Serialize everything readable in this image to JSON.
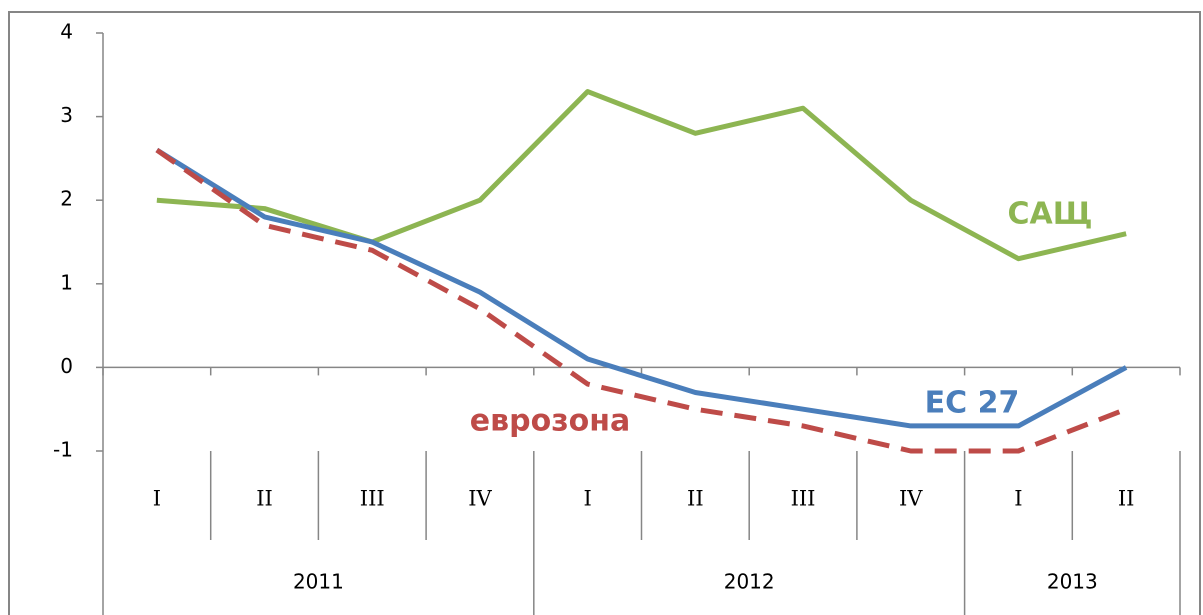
{
  "chart_data": {
    "type": "line",
    "category_groups": [
      {
        "label": "2011",
        "categories": [
          "I",
          "II",
          "III",
          "IV"
        ]
      },
      {
        "label": "2012",
        "categories": [
          "I",
          "II",
          "III",
          "IV"
        ]
      },
      {
        "label": "2013",
        "categories": [
          "I",
          "II"
        ]
      }
    ],
    "series": [
      {
        "name": "САЩ",
        "color": "#8db552",
        "dashed": false,
        "values": [
          2.0,
          1.9,
          1.5,
          2.0,
          3.3,
          2.8,
          3.1,
          2.0,
          1.3,
          1.6
        ]
      },
      {
        "name": "ЕС 27",
        "color": "#4a7ebb",
        "dashed": false,
        "values": [
          2.6,
          1.8,
          1.5,
          0.9,
          0.1,
          -0.3,
          -0.5,
          -0.7,
          -0.7,
          0.0
        ]
      },
      {
        "name": "еврозона",
        "color": "#be4b48",
        "dashed": true,
        "values": [
          2.6,
          1.7,
          1.4,
          0.7,
          -0.2,
          -0.5,
          -0.7,
          -1.0,
          -1.0,
          -0.5
        ]
      }
    ],
    "ylim": [
      -1,
      4
    ],
    "yticks": [
      -1,
      0,
      1,
      2,
      3,
      4
    ],
    "grid": false
  }
}
